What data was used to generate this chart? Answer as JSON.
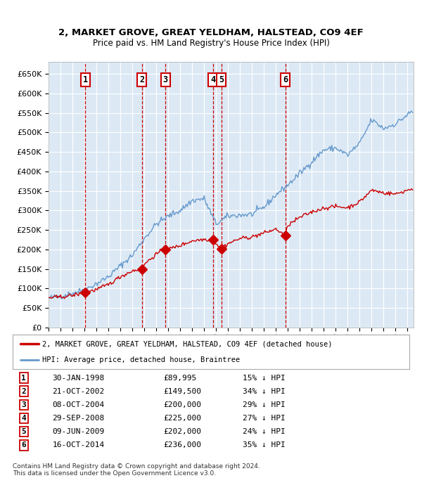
{
  "title1": "2, MARKET GROVE, GREAT YELDHAM, HALSTEAD, CO9 4EF",
  "title2": "Price paid vs. HM Land Registry's House Price Index (HPI)",
  "bg_color": "#dce9f5",
  "grid_color": "#ffffff",
  "sale_dates_num": [
    1998.08,
    2002.81,
    2004.77,
    2008.75,
    2009.44,
    2014.79
  ],
  "sale_prices": [
    89995,
    149500,
    200000,
    225000,
    202000,
    236000
  ],
  "sale_labels": [
    "1",
    "2",
    "3",
    "4",
    "5",
    "6"
  ],
  "legend_line1": "2, MARKET GROVE, GREAT YELDHAM, HALSTEAD, CO9 4EF (detached house)",
  "legend_line2": "HPI: Average price, detached house, Braintree",
  "table_rows": [
    [
      "1",
      "30-JAN-1998",
      "£89,995",
      "15% ↓ HPI"
    ],
    [
      "2",
      "21-OCT-2002",
      "£149,500",
      "34% ↓ HPI"
    ],
    [
      "3",
      "08-OCT-2004",
      "£200,000",
      "29% ↓ HPI"
    ],
    [
      "4",
      "29-SEP-2008",
      "£225,000",
      "27% ↓ HPI"
    ],
    [
      "5",
      "09-JUN-2009",
      "£202,000",
      "24% ↓ HPI"
    ],
    [
      "6",
      "16-OCT-2014",
      "£236,000",
      "35% ↓ HPI"
    ]
  ],
  "footer": "Contains HM Land Registry data © Crown copyright and database right 2024.\nThis data is licensed under the Open Government Licence v3.0.",
  "red_color": "#cc0000",
  "blue_color": "#6699cc",
  "box_color": "#cc0000",
  "yticks": [
    0,
    50000,
    100000,
    150000,
    200000,
    250000,
    300000,
    350000,
    400000,
    450000,
    500000,
    550000,
    600000,
    650000
  ],
  "xlim_start": 1995.0,
  "xlim_end": 2025.5
}
